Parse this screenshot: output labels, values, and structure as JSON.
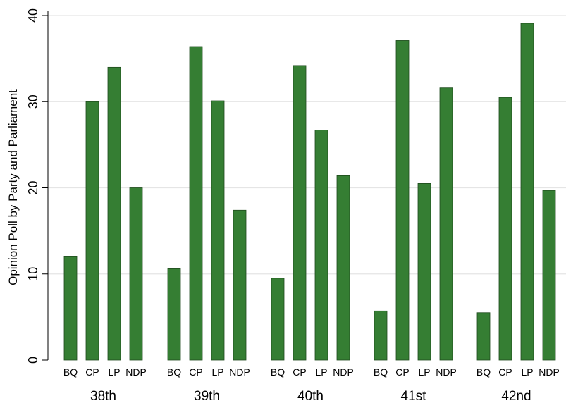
{
  "chart_data": {
    "type": "bar",
    "title": "",
    "ylabel": "Opinion Poll by Party and Parliament",
    "xlabel": "",
    "ylim": [
      0,
      40
    ],
    "yticks": [
      0,
      10,
      20,
      30,
      40
    ],
    "grid": true,
    "legend": "none",
    "bar_color": "#357e33",
    "groups": [
      {
        "label": "38th",
        "categories": [
          "BQ",
          "CP",
          "LP",
          "NDP"
        ],
        "values": [
          12.0,
          30.0,
          34.0,
          20.0
        ]
      },
      {
        "label": "39th",
        "categories": [
          "BQ",
          "CP",
          "LP",
          "NDP"
        ],
        "values": [
          10.6,
          36.4,
          30.1,
          17.4
        ]
      },
      {
        "label": "40th",
        "categories": [
          "BQ",
          "CP",
          "LP",
          "NDP"
        ],
        "values": [
          9.5,
          34.2,
          26.7,
          21.4
        ]
      },
      {
        "label": "41st",
        "categories": [
          "BQ",
          "CP",
          "LP",
          "NDP"
        ],
        "values": [
          5.7,
          37.1,
          20.5,
          31.6
        ]
      },
      {
        "label": "42nd",
        "categories": [
          "BQ",
          "CP",
          "LP",
          "NDP"
        ],
        "values": [
          5.5,
          30.5,
          39.1,
          19.7
        ]
      }
    ]
  }
}
